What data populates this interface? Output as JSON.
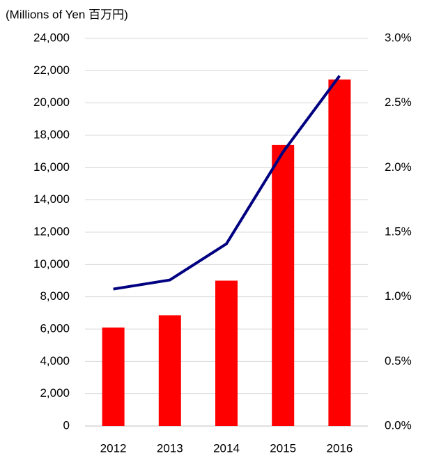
{
  "chart_data": {
    "type": "bar",
    "title": "(Millions of Yen 百万円)",
    "categories": [
      "2012",
      "2013",
      "2014",
      "2015",
      "2016"
    ],
    "series": [
      {
        "type": "bar",
        "color": "#ff0000",
        "values": [
          6100,
          6850,
          9000,
          17400,
          21450
        ]
      },
      {
        "type": "line",
        "color": "#000080",
        "axis": "y2",
        "values": [
          1.06,
          1.13,
          1.41,
          2.12,
          2.71
        ]
      }
    ],
    "ylim": [
      0,
      24000
    ],
    "yticks": [
      0,
      {
        "value": 2000,
        "label": "2,000"
      },
      {
        "value": 4000,
        "label": "4,000"
      },
      {
        "value": 6000,
        "label": "6,000"
      },
      {
        "value": 8000,
        "label": "8,000"
      },
      {
        "value": 10000,
        "label": "10,000"
      },
      {
        "value": 12000,
        "label": "12,000"
      },
      {
        "value": 14000,
        "label": "14,000"
      },
      {
        "value": 16000,
        "label": "16,000"
      },
      {
        "value": 18000,
        "label": "18,000"
      },
      {
        "value": 20000,
        "label": "20,000"
      },
      {
        "value": 22000,
        "label": "22,000"
      },
      {
        "value": 24000,
        "label": "24,000"
      }
    ],
    "y2lim": [
      0,
      3
    ],
    "y2ticks": [
      {
        "value": 0,
        "label": "0.0%"
      },
      {
        "value": 0.5,
        "label": "0.5%"
      },
      {
        "value": 1,
        "label": "1.0%"
      },
      {
        "value": 1.5,
        "label": "1.5%"
      },
      {
        "value": 2,
        "label": "2.0%"
      },
      {
        "value": 2.5,
        "label": "2.5%"
      },
      {
        "value": 3,
        "label": "3.0%"
      }
    ],
    "grid": true
  }
}
